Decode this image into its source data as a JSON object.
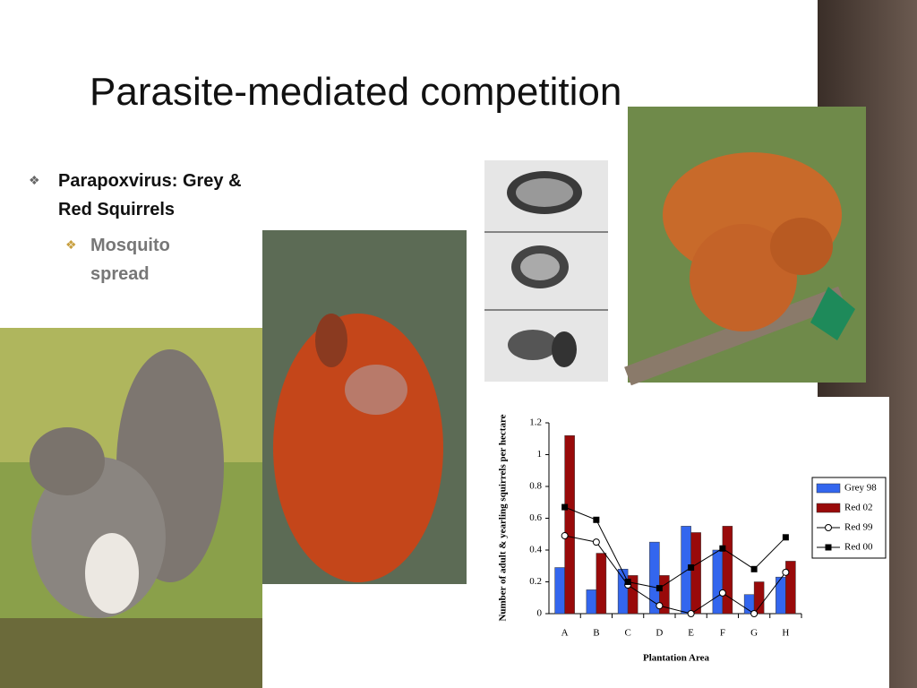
{
  "title": "Parasite-mediated competition",
  "bullets": [
    {
      "text": "Parapoxvirus: Grey & Red Squirrels",
      "sub": [
        "Mosquito spread"
      ]
    }
  ],
  "chart_data": {
    "type": "bar",
    "categories": [
      "A",
      "B",
      "C",
      "D",
      "E",
      "F",
      "G",
      "H"
    ],
    "x_label": "Plantation Area",
    "y_label": "Number of adult & yearling squirrels per hectare",
    "ylim": [
      0,
      1.2
    ],
    "yticks": [
      0,
      0.2,
      0.4,
      0.6,
      0.8,
      1,
      1.2
    ],
    "legend": "right",
    "series": [
      {
        "name": "Grey 98",
        "type": "bar",
        "color": "#3366ee",
        "values": [
          0.29,
          0.15,
          0.28,
          0.45,
          0.55,
          0.4,
          0.12,
          0.23
        ]
      },
      {
        "name": "Red 02",
        "type": "bar",
        "color": "#990a0a",
        "values": [
          1.12,
          0.38,
          0.24,
          0.24,
          0.51,
          0.55,
          0.2,
          0.33
        ]
      },
      {
        "name": "Red 99",
        "type": "line",
        "marker": "open-circle",
        "color": "#000000",
        "values": [
          0.49,
          0.45,
          0.18,
          0.05,
          0.0,
          0.13,
          0.0,
          0.26
        ]
      },
      {
        "name": "Red 00",
        "type": "line",
        "marker": "filled-square",
        "color": "#000000",
        "values": [
          0.67,
          0.59,
          0.2,
          0.16,
          0.29,
          0.41,
          0.28,
          0.48
        ]
      }
    ]
  }
}
